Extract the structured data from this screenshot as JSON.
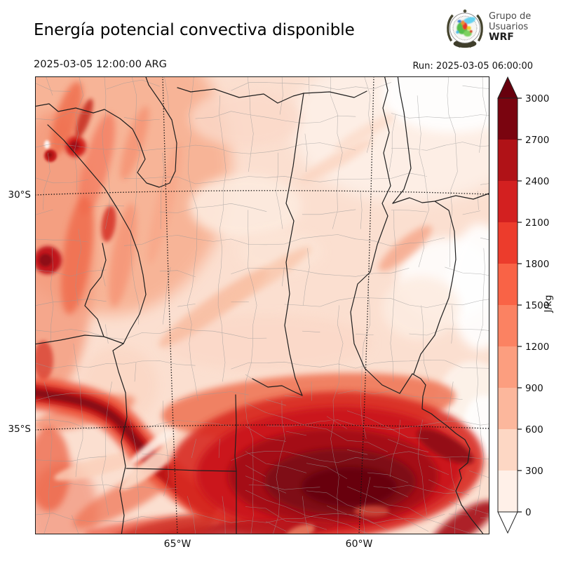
{
  "header": {
    "title": "Energía potencial convectiva disponible",
    "valid_time": "2025-03-05 12:00:00 ARG",
    "run_label": "Run: 2025-03-05 06:00:00",
    "logo": {
      "line1": "Grupo de",
      "line2": "Usuarios",
      "line3": "WRF"
    }
  },
  "map": {
    "lat_labels": [
      "30°S",
      "35°S"
    ],
    "lon_labels": [
      "65°W",
      "60°W"
    ]
  },
  "colorbar": {
    "unit": "J/kg",
    "ticks": [
      "0",
      "300",
      "600",
      "900",
      "1200",
      "1500",
      "1800",
      "2100",
      "2400",
      "2700",
      "3000"
    ],
    "segment_colors": [
      "#fff0e8",
      "#fdd7c4",
      "#fcb79c",
      "#fc9e7f",
      "#fb8262",
      "#f96346",
      "#ec3c2c",
      "#d32020",
      "#b01217",
      "#7a040f"
    ],
    "over_color": "#67000d",
    "under_color": "#ffffff"
  },
  "chart_data": {
    "type": "heatmap",
    "title": "Energía potencial convectiva disponible",
    "valid_time": "2025-03-05 12:00:00 ARG",
    "run_time": "2025-03-05 06:00:00",
    "unit": "J/kg",
    "levels": [
      0,
      300,
      600,
      900,
      1200,
      1500,
      1800,
      2100,
      2400,
      2700,
      3000
    ],
    "palette": [
      "#fff0e8",
      "#fdd7c4",
      "#fcb79c",
      "#fc9e7f",
      "#fb8262",
      "#f96346",
      "#ec3c2c",
      "#d32020",
      "#b01217",
      "#7a040f"
    ],
    "over_color": "#67000d",
    "under_color": "#ffffff",
    "colorbar_orientation": "vertical-right",
    "gridlines": {
      "lat_deg_s": [
        30,
        35
      ],
      "lon_deg_w": [
        65,
        60
      ]
    },
    "notes_visible_maxima": "values >3000 J/kg southeast sector (south of 35S, 58-63W); secondary maxima along northwest mountain band and 35S west band"
  }
}
